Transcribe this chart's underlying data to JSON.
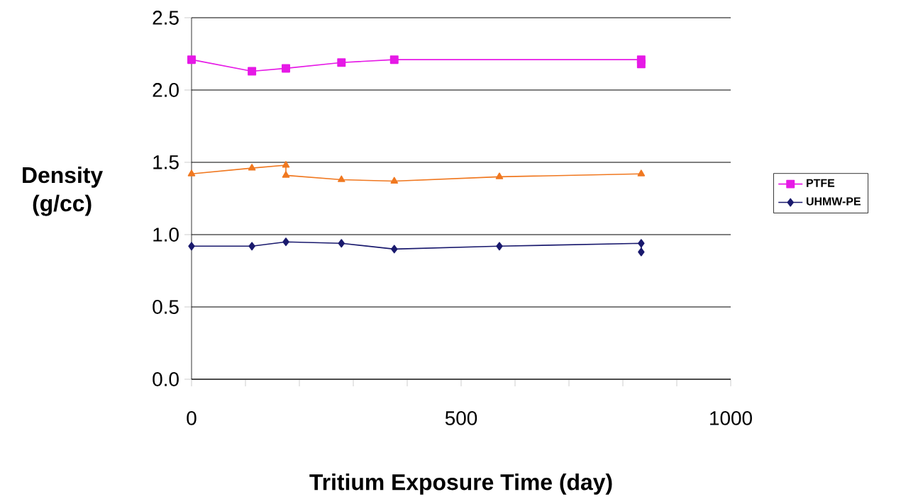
{
  "chart_data": {
    "type": "line",
    "xlabel": "Tritium Exposure Time (day)",
    "ylabel": "Density (g/cc)",
    "xlim": [
      0,
      1000
    ],
    "ylim": [
      0,
      2.5
    ],
    "xticks": [
      0,
      {
        "value": 100,
        "label": null
      },
      {
        "value": 200,
        "label": null
      },
      {
        "value": 300,
        "label": null
      },
      {
        "value": 400,
        "label": null
      },
      500,
      {
        "value": 600,
        "label": null
      },
      {
        "value": 700,
        "label": null
      },
      {
        "value": 800,
        "label": null
      },
      {
        "value": 900,
        "label": null
      },
      1000
    ],
    "yticks": [
      {
        "value": 0,
        "label": "0.0"
      },
      {
        "value": 0.5,
        "label": "0.5"
      },
      {
        "value": 1,
        "label": "1.0"
      },
      {
        "value": 1.5,
        "label": "1.5"
      },
      {
        "value": 2,
        "label": "2.0"
      },
      {
        "value": 2.5,
        "label": "2.5"
      }
    ],
    "grid": "y",
    "legend": "right",
    "line_style": "solid",
    "series": [
      {
        "name": "PTFE",
        "color": "#e619e6",
        "marker": "square",
        "x": [
          0,
          112,
          175,
          278,
          376,
          834,
          834
        ],
        "values": [
          2.21,
          2.13,
          2.15,
          2.19,
          2.21,
          2.21,
          2.18
        ]
      },
      {
        "color": "#f07820",
        "marker": "triangle",
        "x": [
          0,
          112,
          175,
          175,
          278,
          376,
          571,
          834
        ],
        "values": [
          1.42,
          1.46,
          1.48,
          1.41,
          1.38,
          1.37,
          1.4,
          1.42
        ]
      },
      {
        "name": "UHMW-PE",
        "color": "#1a1a6e",
        "marker": "diamond",
        "x": [
          0,
          112,
          175,
          278,
          376,
          571,
          834,
          834
        ],
        "values": [
          0.92,
          0.92,
          0.95,
          0.94,
          0.9,
          0.92,
          0.94,
          0.88
        ]
      }
    ]
  }
}
